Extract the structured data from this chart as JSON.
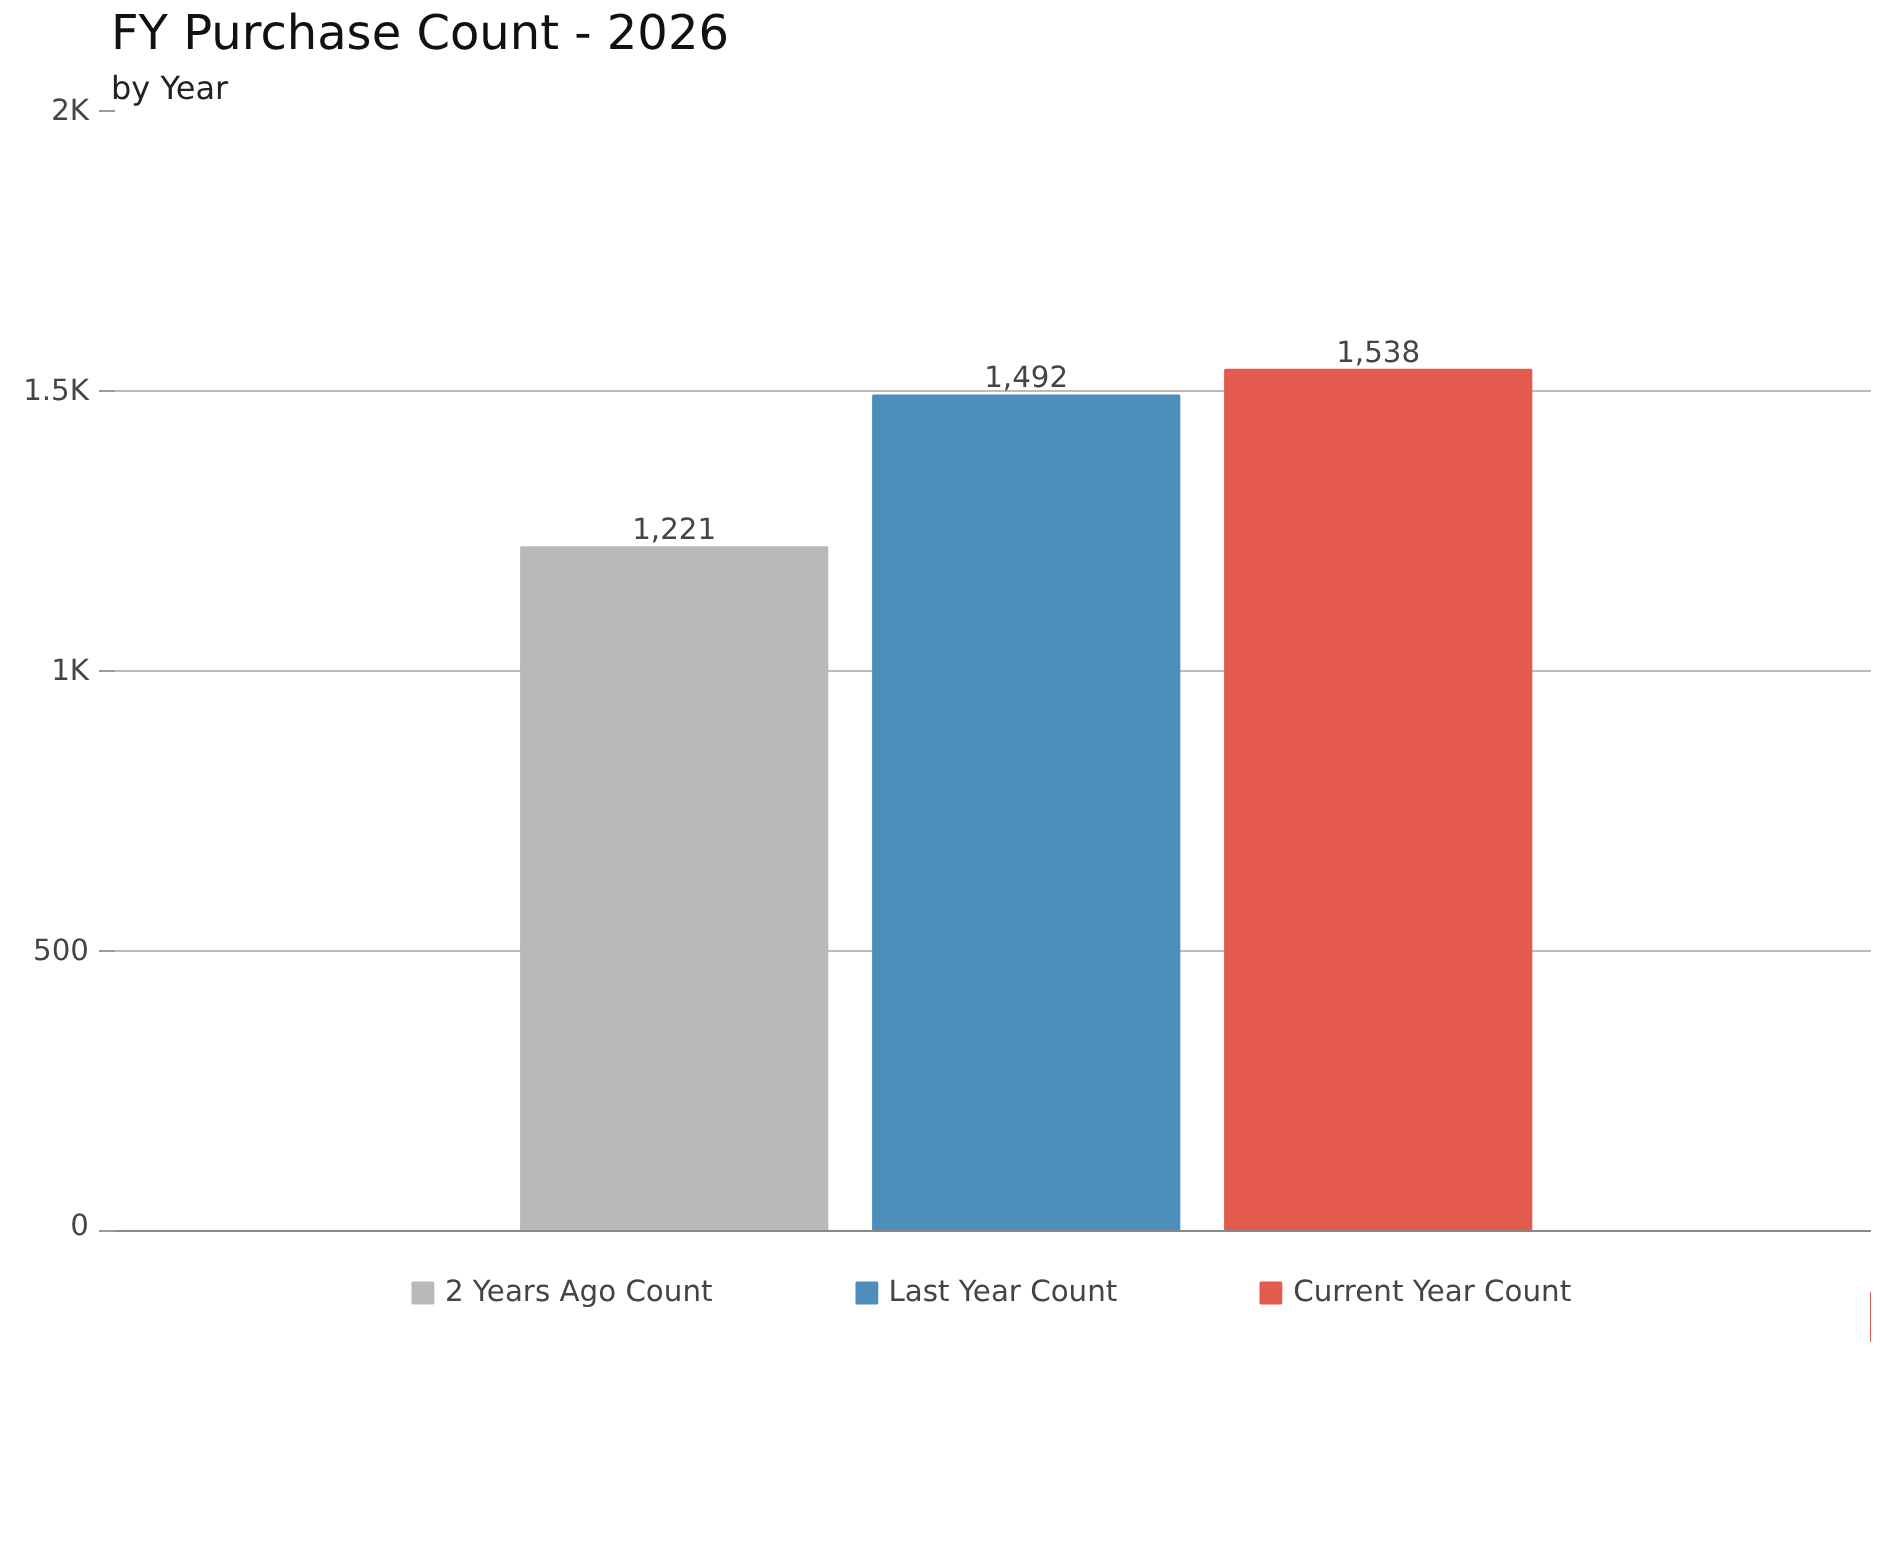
{
  "chart_data": {
    "type": "bar",
    "title": "FY Purchase Count - 2026",
    "subtitle": "by Year",
    "categories": [
      null
    ],
    "series": [
      {
        "name": "2 Years Ago Count",
        "color": "#b9b9b9",
        "values": [
          1221
        ],
        "value_labels": [
          "1,221"
        ]
      },
      {
        "name": "Last Year Count",
        "color": "#4d8ebb",
        "values": [
          1492
        ],
        "value_labels": [
          "1,492"
        ]
      },
      {
        "name": "Current Year Count",
        "color": "#e45a4f",
        "values": [
          1538
        ],
        "value_labels": [
          "1,538"
        ]
      }
    ],
    "ylim": [
      0,
      2000
    ],
    "yticks": [
      {
        "value": 0,
        "label": "0"
      },
      {
        "value": 500,
        "label": "500"
      },
      {
        "value": 1000,
        "label": "1K"
      },
      {
        "value": 1500,
        "label": "1.5K"
      },
      {
        "value": 2000,
        "label": "2K"
      }
    ],
    "grid": "y",
    "legend": "bottom"
  }
}
